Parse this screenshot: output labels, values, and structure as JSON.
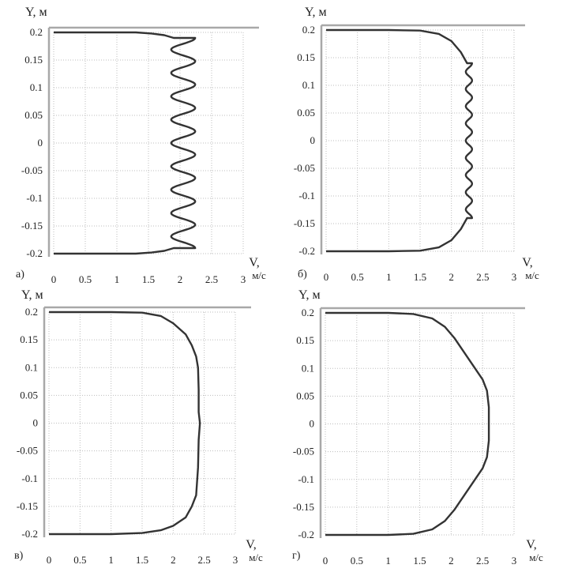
{
  "chart_data": [
    {
      "type": "line",
      "panel_label": "а)",
      "ylabel": "Y, м",
      "xlabel": "V, м/с",
      "xlim": [
        0,
        3
      ],
      "ylim": [
        -0.2,
        0.2
      ],
      "xticks": [
        "0",
        "0.5",
        "1",
        "1.5",
        "2",
        "2.5",
        "3"
      ],
      "yticks": [
        "0.2",
        "0.15",
        "0.1",
        "0.05",
        "0",
        "-0.05",
        "-0.1",
        "-0.15",
        "-0.2"
      ],
      "grid": true,
      "series": [
        {
          "profile": "wavy-large",
          "mean_core": 2.05,
          "amplitude": 0.19,
          "waves": 9,
          "x": [
            0,
            1,
            1.3,
            1.55,
            1.75,
            1.9
          ],
          "y": [
            0.2,
            0.2,
            0.2,
            0.198,
            0.195,
            0.19
          ]
        }
      ]
    },
    {
      "type": "line",
      "panel_label": "б)",
      "ylabel": "Y, м",
      "xlabel": "V, м/с",
      "xlim": [
        0,
        3
      ],
      "ylim": [
        -0.2,
        0.2
      ],
      "xticks": [
        "0",
        "0.5",
        "1",
        "1.5",
        "2",
        "2.5",
        "3"
      ],
      "yticks": [
        "0.2",
        "0.15",
        "0.1",
        "0.05",
        "0",
        "-0.05",
        "-0.1",
        "-0.15",
        "-0.2"
      ],
      "grid": true,
      "series": [
        {
          "profile": "wavy-small",
          "mean_core": 2.28,
          "amplitude": 0.05,
          "waves": 9,
          "x": [
            0,
            1,
            1.5,
            1.8,
            2.0,
            2.15,
            2.25
          ],
          "y": [
            0.2,
            0.2,
            0.199,
            0.193,
            0.18,
            0.16,
            0.14
          ]
        }
      ]
    },
    {
      "type": "line",
      "panel_label": "в)",
      "ylabel": "Y, м",
      "xlabel": "V, м/с",
      "xlim": [
        0,
        3
      ],
      "ylim": [
        -0.2,
        0.2
      ],
      "xticks": [
        "0",
        "0.5",
        "1",
        "1.5",
        "2",
        "2.5",
        "3"
      ],
      "yticks": [
        "0.2",
        "0.15",
        "0.1",
        "0.05",
        "0",
        "-0.05",
        "-0.1",
        "-0.15",
        "-0.2"
      ],
      "grid": true,
      "series": [
        {
          "profile": "smooth",
          "x": [
            0,
            1,
            1.5,
            1.8,
            2.0,
            2.2,
            2.3,
            2.37,
            2.4,
            2.41,
            2.41,
            2.43,
            2.41,
            2.4,
            2.37,
            2.3,
            2.2,
            2.0,
            1.8,
            1.5,
            1,
            0
          ],
          "y": [
            0.2,
            0.2,
            0.199,
            0.193,
            0.18,
            0.16,
            0.14,
            0.12,
            0.1,
            0.06,
            0.02,
            0,
            -0.03,
            -0.08,
            -0.13,
            -0.15,
            -0.17,
            -0.185,
            -0.193,
            -0.198,
            -0.2,
            -0.2
          ]
        }
      ]
    },
    {
      "type": "line",
      "panel_label": "г)",
      "ylabel": "Y, м",
      "xlabel": "V, м/с",
      "xlim": [
        0,
        3
      ],
      "ylim": [
        -0.2,
        0.2
      ],
      "xticks": [
        "0",
        "0.5",
        "1",
        "1.5",
        "2",
        "2.5",
        "3"
      ],
      "yticks": [
        "0.2",
        "0.15",
        "0.1",
        "0.05",
        "0",
        "-0.05",
        "-0.1",
        "-0.15",
        "-0.2"
      ],
      "grid": true,
      "series": [
        {
          "profile": "smooth",
          "x": [
            0,
            1,
            1.4,
            1.7,
            1.9,
            2.05,
            2.2,
            2.35,
            2.5,
            2.57,
            2.6,
            2.6,
            2.57,
            2.5,
            2.35,
            2.2,
            2.05,
            1.9,
            1.7,
            1.4,
            1,
            0
          ],
          "y": [
            0.2,
            0.2,
            0.198,
            0.19,
            0.175,
            0.155,
            0.13,
            0.105,
            0.08,
            0.06,
            0.03,
            -0.03,
            -0.06,
            -0.08,
            -0.105,
            -0.13,
            -0.155,
            -0.175,
            -0.19,
            -0.198,
            -0.2,
            -0.2
          ]
        }
      ]
    }
  ]
}
